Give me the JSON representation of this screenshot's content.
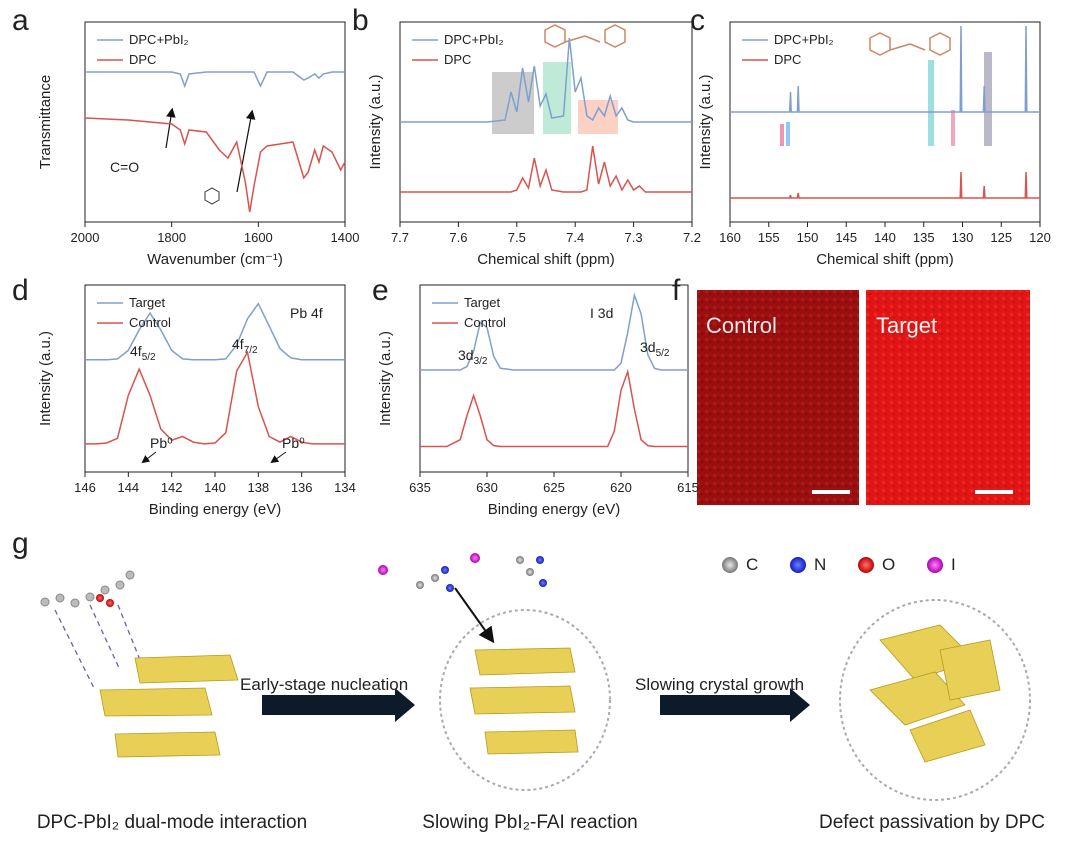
{
  "panel_labels": [
    "a",
    "b",
    "c",
    "d",
    "e",
    "f",
    "g"
  ],
  "chart_data": [
    {
      "type": "line",
      "xlabel": "Wavenumber (cm⁻¹)",
      "ylabel": "Transmittance",
      "xlim": [
        2000,
        1400
      ],
      "ylim": [
        0,
        10
      ],
      "xticks": [
        2000,
        1800,
        1600,
        1400
      ],
      "legend": "upper left",
      "x": [
        2000,
        1900,
        1800,
        1780,
        1770,
        1760,
        1720,
        1690,
        1670,
        1650,
        1630,
        1620,
        1610,
        1595,
        1580,
        1550,
        1520,
        1495,
        1485,
        1470,
        1460,
        1450,
        1430,
        1410,
        1400
      ],
      "series": [
        {
          "name": "DPC+PbI₂",
          "color": "#7f9fcf",
          "values": [
            7.5,
            7.5,
            7.5,
            7.4,
            6.8,
            7.4,
            7.5,
            7.5,
            7.5,
            7.5,
            7.5,
            7.5,
            7.5,
            6.8,
            7.5,
            7.5,
            7.5,
            7.1,
            7.2,
            7.4,
            7.2,
            7.4,
            7.5,
            7.5,
            7.5
          ]
        },
        {
          "name": "DPC",
          "color": "#d9534f",
          "values": [
            5.2,
            5.1,
            4.9,
            4.6,
            3.9,
            4.6,
            4.5,
            3.6,
            3.2,
            4.0,
            2.0,
            0.5,
            1.8,
            3.5,
            3.8,
            3.9,
            4.0,
            2.2,
            2.5,
            3.6,
            3.0,
            3.8,
            3.5,
            2.6,
            3.0
          ]
        }
      ],
      "annotations": [
        {
          "text": "C=O"
        }
      ]
    },
    {
      "type": "line",
      "xlabel": "Chemical shift (ppm)",
      "ylabel": "Intensity (a.u.)",
      "xlim": [
        7.7,
        7.2
      ],
      "ylim": [
        0,
        10
      ],
      "xticks": [
        7.7,
        7.6,
        7.5,
        7.4,
        7.3,
        7.2
      ],
      "legend": "upper left",
      "x": [
        7.7,
        7.55,
        7.52,
        7.51,
        7.5,
        7.49,
        7.48,
        7.47,
        7.46,
        7.45,
        7.44,
        7.42,
        7.41,
        7.4,
        7.39,
        7.38,
        7.37,
        7.36,
        7.35,
        7.34,
        7.33,
        7.32,
        7.31,
        7.3,
        7.29,
        7.28,
        7.2
      ],
      "series": [
        {
          "name": "DPC+PbI₂",
          "color": "#7f9fcf",
          "values": [
            5,
            5,
            5.1,
            6.5,
            5.5,
            7.7,
            6,
            7.8,
            5.8,
            6.4,
            5.2,
            5.3,
            9.2,
            6.5,
            7.2,
            5.3,
            5.1,
            5.7,
            5.3,
            6.3,
            5.3,
            5.7,
            5.1,
            5,
            5,
            5,
            5
          ]
        },
        {
          "name": "DPC",
          "color": "#d9534f",
          "values": [
            1.5,
            1.5,
            1.5,
            1.5,
            1.6,
            2.2,
            1.7,
            3.2,
            1.8,
            2.6,
            1.6,
            1.5,
            1.5,
            1.5,
            1.5,
            1.6,
            3.8,
            1.9,
            3.0,
            1.8,
            2.3,
            1.6,
            2.1,
            1.6,
            1.8,
            1.5,
            1.5
          ]
        }
      ],
      "annotations": []
    },
    {
      "type": "line",
      "xlabel": "Chemical shift (ppm)",
      "ylabel": "Intensity (a.u.)",
      "xlim": [
        160,
        120
      ],
      "ylim": [
        0,
        10
      ],
      "xticks": [
        160,
        155,
        150,
        145,
        140,
        135,
        130,
        125,
        120
      ],
      "legend": "upper left",
      "x": [
        160,
        152.3,
        152.2,
        152.1,
        151.3,
        151.2,
        151.1,
        130.3,
        130.2,
        130.1,
        127.3,
        127.2,
        127.1,
        121.9,
        121.8,
        121.7,
        120
      ],
      "series": [
        {
          "name": "DPC+PbI₂",
          "color": "#7f9fcf",
          "values": [
            5.5,
            5.5,
            6.5,
            5.5,
            5.5,
            6.8,
            5.5,
            5.5,
            9.8,
            5.5,
            5.5,
            6.8,
            5.5,
            5.5,
            9.8,
            5.5,
            5.5
          ]
        },
        {
          "name": "DPC",
          "color": "#d9534f",
          "values": [
            1.2,
            1.2,
            1.35,
            1.2,
            1.2,
            1.45,
            1.2,
            1.2,
            2.5,
            1.2,
            1.2,
            1.8,
            1.2,
            1.2,
            2.5,
            1.2,
            1.2
          ]
        }
      ],
      "annotations": []
    },
    {
      "type": "line",
      "xlabel": "Binding energy (eV)",
      "ylabel": "Intensity (a.u.)",
      "xlim": [
        146,
        134
      ],
      "ylim": [
        0,
        10
      ],
      "xticks": [
        146,
        144,
        142,
        140,
        138,
        136,
        134
      ],
      "legend": "upper left",
      "x": [
        146,
        145.5,
        145,
        144.5,
        144,
        143.5,
        143,
        142.5,
        142,
        141.5,
        141,
        140.5,
        140,
        139.5,
        139,
        138.5,
        138,
        137.5,
        137,
        136.5,
        136,
        135.5,
        135,
        134.5,
        134
      ],
      "series": [
        {
          "name": "Target",
          "color": "#7f9fcf",
          "values": [
            6,
            6,
            6,
            6.05,
            6.5,
            7.6,
            8.5,
            7.6,
            6.5,
            6.05,
            6,
            6,
            6,
            6.05,
            6.8,
            8.2,
            9.0,
            7.8,
            6.6,
            6.1,
            6,
            6,
            6,
            6,
            6
          ]
        },
        {
          "name": "Control",
          "color": "#d9534f",
          "values": [
            1.5,
            1.5,
            1.55,
            1.8,
            4.1,
            5.5,
            4.1,
            2.3,
            1.7,
            1.9,
            1.6,
            1.5,
            1.55,
            2.1,
            5.4,
            6.4,
            3.5,
            1.9,
            1.6,
            1.9,
            1.6,
            1.5,
            1.5,
            1.5,
            1.5
          ]
        }
      ],
      "annotations": [
        {
          "text": "Pb 4f"
        },
        {
          "text": "4f",
          "sub": "5/2"
        },
        {
          "text": "4f",
          "sub": "7/2"
        },
        {
          "text": "Pb⁰"
        },
        {
          "text": "Pb⁰"
        }
      ]
    },
    {
      "type": "line",
      "xlabel": "Binding energy (eV)",
      "ylabel": "Intensity (a.u.)",
      "xlim": [
        635,
        615
      ],
      "ylim": [
        0,
        11
      ],
      "xticks": [
        635,
        630,
        625,
        620,
        615
      ],
      "legend": "upper left",
      "x": [
        635,
        633,
        632,
        631.5,
        631,
        630.5,
        630,
        629.5,
        629,
        628,
        625,
        622,
        621,
        620.5,
        620,
        619.5,
        619,
        618.5,
        618,
        617.5,
        617,
        615
      ],
      "series": [
        {
          "name": "Target",
          "color": "#7f9fcf",
          "values": [
            6,
            6,
            6,
            6.2,
            7.1,
            8.8,
            8.5,
            6.8,
            6.1,
            6,
            6,
            6,
            6,
            6,
            6.4,
            8.2,
            10.4,
            9.3,
            6.9,
            6.1,
            6,
            6
          ]
        },
        {
          "name": "Control",
          "color": "#d9534f",
          "values": [
            1.5,
            1.5,
            1.9,
            3.3,
            4.5,
            3.3,
            1.9,
            1.55,
            1.5,
            1.5,
            1.5,
            1.5,
            1.5,
            2.4,
            4.8,
            5.9,
            3.7,
            1.9,
            1.55,
            1.5,
            1.5,
            1.5
          ]
        }
      ],
      "annotations": [
        {
          "text": "I 3d"
        },
        {
          "text": "3d",
          "sub": "3/2"
        },
        {
          "text": "3d",
          "sub": "5/2"
        }
      ]
    }
  ],
  "images": {
    "labels": [
      "Control",
      "Target"
    ]
  },
  "scheme": {
    "atoms": [
      "C",
      "N",
      "O",
      "I"
    ],
    "steps": [
      "Early-stage nucleation",
      "Slowing crystal growth"
    ],
    "captions": [
      "DPC-PbI₂ dual-mode interaction",
      "Slowing PbI₂-FAI reaction",
      "Defect passivation by DPC"
    ]
  }
}
